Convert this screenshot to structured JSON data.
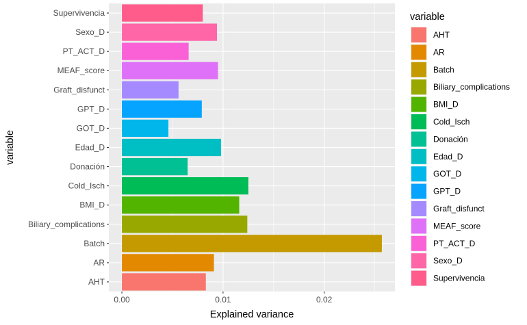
{
  "chart_data": {
    "type": "bar",
    "orientation": "horizontal",
    "categories": [
      "AHT",
      "AR",
      "Batch",
      "Biliary_complications",
      "BMI_D",
      "Cold_Isch",
      "Donación",
      "Edad_D",
      "GOT_D",
      "GPT_D",
      "Graft_disfunct",
      "MEAF_score",
      "PT_ACT_D",
      "Sexo_D",
      "Supervivencia"
    ],
    "values": [
      0.0083,
      0.0091,
      0.0257,
      0.0124,
      0.0116,
      0.0125,
      0.0065,
      0.0098,
      0.0046,
      0.0079,
      0.0056,
      0.0095,
      0.0066,
      0.0094,
      0.008
    ],
    "colors": [
      "#F8766D",
      "#E38900",
      "#C49A00",
      "#99A800",
      "#53B400",
      "#00BC56",
      "#00C094",
      "#00BFC4",
      "#00B6EB",
      "#06A4FF",
      "#A58AFF",
      "#DF70F8",
      "#FB61D7",
      "#FF66A8",
      "#FF5C8C"
    ],
    "x_ticks": [
      0.0,
      0.01,
      0.02
    ],
    "x_tick_labels": [
      "0.00",
      "0.01",
      "0.02"
    ],
    "xlim": [
      -0.00129,
      0.02699
    ],
    "xlabel": "Explained variance",
    "ylabel": "variable",
    "legend_title": "variable",
    "legend_position": "right",
    "grid": true,
    "panel_background": "#EBEBEB",
    "grid_color": "#FFFFFF"
  }
}
